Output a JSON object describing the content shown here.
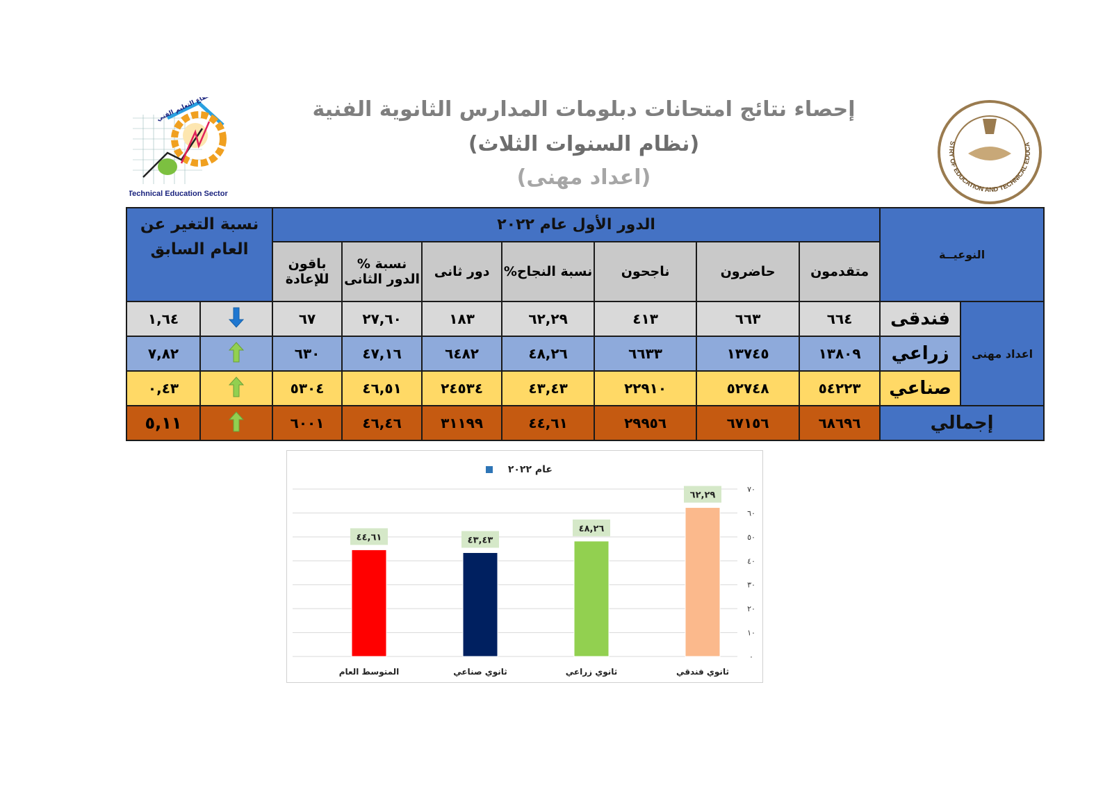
{
  "header": {
    "title": "إحصاء نتائج امتحانات دبلومات المدارس الثانوية الفنية",
    "subtitle": "(نظام السنوات الثلاث)",
    "subtitle2": "(اعداد مهنى)",
    "left_logo_text": "Technical Education Sector",
    "left_logo_arabic": "قطاع التعليم الفني",
    "right_logo_text": "MINISTRY OF EDUCATION AND TECHNICAL EDUCATION"
  },
  "table": {
    "type_header": "النوعيــة",
    "round_header": "الدور الأول عام ٢٠٢٢",
    "change_header": "نسبة التغير عن العام السابق",
    "columns": [
      "متقدمون",
      "حاضرون",
      "ناجحون",
      "نسبة النجاح%",
      "دور ثانى",
      "نسبة % الدور الثانى",
      "باقون للإعادة"
    ],
    "category": "اعداد مهنى",
    "rows": [
      {
        "type": "فندقى",
        "values": [
          "٦٦٤",
          "٦٦٣",
          "٤١٣",
          "٦٢,٢٩",
          "١٨٣",
          "٢٧,٦٠",
          "٦٧"
        ],
        "trend": "down",
        "trend_icon": "arrow-down-icon",
        "change": "١,٦٤"
      },
      {
        "type": "زراعي",
        "values": [
          "١٣٨٠٩",
          "١٣٧٤٥",
          "٦٦٣٣",
          "٤٨,٢٦",
          "٦٤٨٢",
          "٤٧,١٦",
          "٦٣٠"
        ],
        "trend": "up",
        "trend_icon": "arrow-up-icon",
        "change": "٧,٨٢"
      },
      {
        "type": "صناعي",
        "values": [
          "٥٤٢٢٣",
          "٥٢٧٤٨",
          "٢٢٩١٠",
          "٤٣,٤٣",
          "٢٤٥٣٤",
          "٤٦,٥١",
          "٥٣٠٤"
        ],
        "trend": "up",
        "trend_icon": "arrow-up-icon",
        "change": "٠,٤٣"
      }
    ],
    "total": {
      "type": "إجمالي",
      "values": [
        "٦٨٦٩٦",
        "٦٧١٥٦",
        "٢٩٩٥٦",
        "٤٤,٦١",
        "٣١١٩٩",
        "٤٦,٤٦",
        "٦٠٠١"
      ],
      "trend": "up",
      "trend_icon": "arrow-up-icon",
      "change": "٥,١١"
    },
    "colors": {
      "down_arrow": "#1f77d0",
      "up_arrow": "#92d050"
    }
  },
  "chart_data": {
    "type": "bar",
    "legend": "عام ٢٠٢٢",
    "legend_placement": "top",
    "categories": [
      "ثانوي فندقي",
      "ثانوي زراعي",
      "ثانوي صناعي",
      "المتوسط العام"
    ],
    "values": [
      62.29,
      48.26,
      43.43,
      44.61
    ],
    "data_labels": [
      "٦٢,٢٩",
      "٤٨,٢٦",
      "٤٣,٤٣",
      "٤٤,٦١"
    ],
    "colors": [
      "#fbb98c",
      "#92d050",
      "#002060",
      "#ff0000"
    ],
    "ylim": [
      0,
      70
    ],
    "y_axis_side": "right",
    "y_ticks": [
      0,
      10,
      20,
      30,
      40,
      50,
      60,
      70
    ],
    "y_tick_labels": [
      "٠",
      "١٠",
      "٢٠",
      "٣٠",
      "٤٠",
      "٥٠",
      "٦٠",
      "٧٠"
    ],
    "grid": true
  }
}
